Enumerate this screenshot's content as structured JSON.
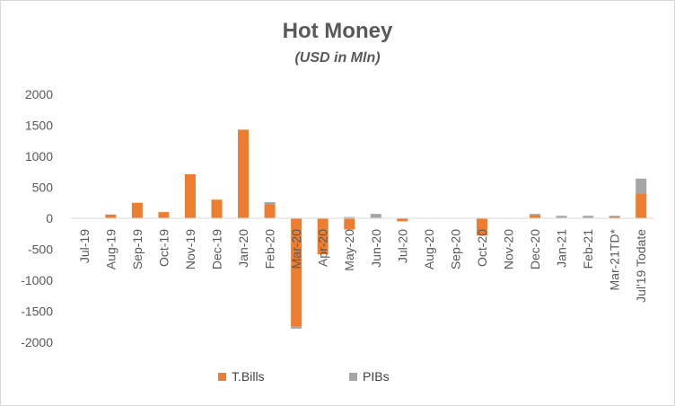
{
  "chart_data": {
    "type": "bar",
    "stacked": true,
    "title": "Hot Money",
    "subtitle": "(USD in Mln)",
    "categories": [
      "Jul-19",
      "Aug-19",
      "Sep-19",
      "Oct-19",
      "Nov-19",
      "Dec-19",
      "Jan-20",
      "Feb-20",
      "Mar-20",
      "Apr-20",
      "May-20",
      "Jun-20",
      "Jul-20",
      "Aug-20",
      "Sep-20",
      "Oct-20",
      "Nov-20",
      "Dec-20",
      "Jan-21",
      "Feb-21",
      "Mar-21TD*",
      "Jul'19 Todate"
    ],
    "series": [
      {
        "name": "T.Bills",
        "color": "#ed7d31",
        "values": [
          0,
          60,
          250,
          100,
          710,
          300,
          1430,
          230,
          -1740,
          -580,
          -180,
          10,
          -50,
          0,
          0,
          -280,
          0,
          50,
          10,
          10,
          30,
          400
        ]
      },
      {
        "name": "PIBs",
        "color": "#a5a5a5",
        "values": [
          0,
          0,
          0,
          0,
          0,
          0,
          0,
          30,
          -40,
          0,
          20,
          60,
          0,
          0,
          0,
          0,
          0,
          20,
          30,
          30,
          10,
          240
        ]
      }
    ],
    "ylim": [
      -2000,
      2000
    ],
    "yticks": [
      2000,
      1500,
      1000,
      500,
      0,
      -500,
      -1000,
      -1500,
      -2000
    ],
    "legend_position": "bottom",
    "grid": false
  }
}
